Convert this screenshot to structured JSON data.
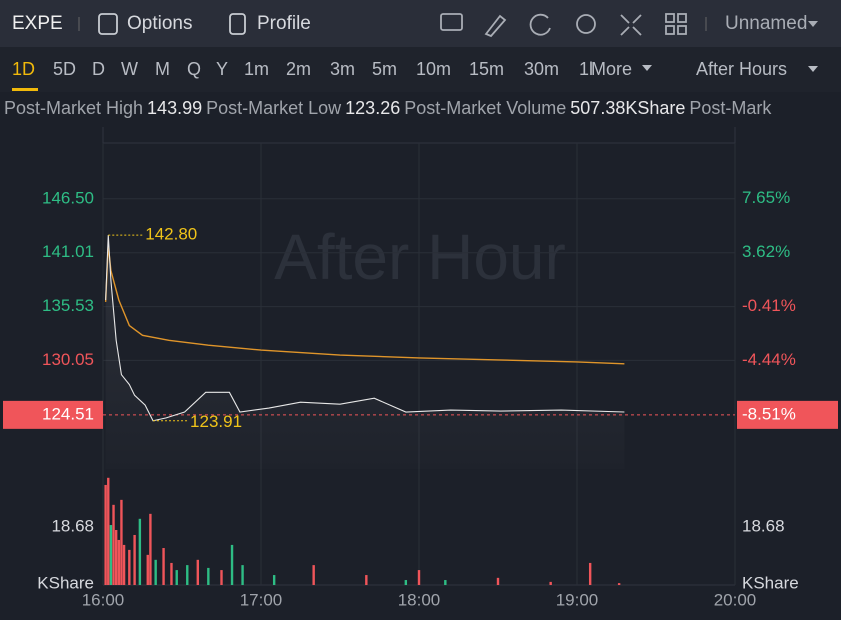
{
  "header": {
    "symbol": "EXPE",
    "buttons": [
      "Options",
      "Profile"
    ],
    "layout_name": "Unnamed"
  },
  "timeframes": {
    "items": [
      "1D",
      "5D",
      "D",
      "W",
      "M",
      "Q",
      "Y",
      "1m",
      "2m",
      "3m",
      "5m",
      "10m",
      "15m",
      "30m",
      "1l",
      "More"
    ],
    "selected": "1D",
    "session": "After Hours"
  },
  "stats": [
    {
      "label": "Post-Market High",
      "value": "143.99"
    },
    {
      "label": "Post-Market Low",
      "value": "123.26"
    },
    {
      "label": "Post-Market Volume",
      "value": "507.38KShare"
    },
    {
      "label": "Post-Mark"
    }
  ],
  "chart": {
    "watermark": "After Hour",
    "xlim": [
      "16:00",
      "20:00"
    ],
    "xticks": [
      "16:00",
      "17:00",
      "18:00",
      "19:00",
      "20:00"
    ],
    "ylim": [
      119,
      153.5
    ],
    "yticks": [
      {
        "value": 146.5,
        "label": "146.50"
      },
      {
        "value": 141.01,
        "label": "141.01"
      },
      {
        "value": 135.53,
        "label": "135.53"
      },
      {
        "value": 130.05,
        "label": "130.05"
      }
    ],
    "y2lim": [
      -12.56,
      12.79
    ],
    "y2ticks": [
      {
        "value": 7.65,
        "label": "7.65%"
      },
      {
        "value": 3.62,
        "label": "3.62%"
      },
      {
        "value": -0.41,
        "label": "-0.41%"
      },
      {
        "value": -4.44,
        "label": "-4.44%"
      }
    ],
    "last_price": {
      "value": 124.51,
      "change": {
        "value": -8.51,
        "label": "-8.51%"
      }
    },
    "high_marker": {
      "x": "16:02",
      "value": 142.8,
      "label": "142.80"
    },
    "low_marker": {
      "x": "16:19",
      "value": 123.91,
      "label": "123.91"
    },
    "price": {
      "color": "#e8e8e8",
      "x": [
        "16:01",
        "16:02",
        "16:03",
        "16:05",
        "16:07",
        "16:10",
        "16:12",
        "16:16",
        "16:19",
        "16:24",
        "16:31",
        "16:39",
        "16:48",
        "16:52",
        "17:03",
        "17:15",
        "17:30",
        "17:43",
        "17:55",
        "18:12",
        "18:31",
        "18:54",
        "19:18"
      ],
      "values": [
        136.2,
        142.8,
        138.2,
        132.1,
        128.6,
        127.6,
        126.5,
        125.5,
        123.91,
        124.2,
        124.8,
        126.8,
        126.8,
        124.8,
        125.2,
        125.8,
        125.6,
        126.2,
        124.8,
        125.0,
        124.9,
        125.0,
        124.8
      ]
    },
    "average": {
      "color": "#e0952a",
      "x": [
        "16:01",
        "16:02",
        "16:03",
        "16:06",
        "16:10",
        "16:15",
        "16:25",
        "16:40",
        "17:00",
        "17:30",
        "18:00",
        "18:30",
        "19:00",
        "19:18"
      ],
      "values": [
        136.0,
        141.8,
        139.2,
        136.2,
        133.6,
        132.6,
        132.1,
        131.6,
        131.1,
        130.6,
        130.3,
        130.1,
        129.9,
        129.7
      ]
    },
    "volume": {
      "unit_label": "KShare",
      "ylim": [
        0,
        35.4
      ],
      "yticks": [
        {
          "value": 18.68,
          "label": "18.68"
        }
      ],
      "up_color": "#2ebd85",
      "down_color": "#f0555a",
      "x": [
        "16:01",
        "16:02",
        "16:03",
        "16:04",
        "16:05",
        "16:06",
        "16:07",
        "16:08",
        "16:10",
        "16:12",
        "16:14",
        "16:17",
        "16:18",
        "16:20",
        "16:23",
        "16:26",
        "16:28",
        "16:32",
        "16:36",
        "16:40",
        "16:45",
        "16:49",
        "16:53",
        "17:05",
        "17:20",
        "17:40",
        "17:55",
        "18:00",
        "18:10",
        "18:30",
        "18:50",
        "19:05",
        "19:16"
      ],
      "values": [
        32.2,
        34.5,
        19.3,
        25.8,
        17.7,
        14.5,
        27.4,
        12.9,
        11.3,
        16.1,
        21.3,
        9.7,
        22.9,
        8.1,
        11.9,
        7.1,
        4.8,
        6.4,
        8.1,
        5.5,
        4.8,
        12.9,
        6.4,
        3.2,
        6.4,
        3.2,
        1.6,
        4.8,
        1.6,
        2.3,
        1.0,
        7.1,
        0.6
      ],
      "up": [
        false,
        false,
        true,
        false,
        false,
        false,
        false,
        false,
        false,
        false,
        true,
        false,
        false,
        true,
        false,
        false,
        true,
        true,
        false,
        true,
        false,
        true,
        true,
        true,
        false,
        false,
        true,
        false,
        true,
        false,
        false,
        false,
        false
      ]
    }
  }
}
